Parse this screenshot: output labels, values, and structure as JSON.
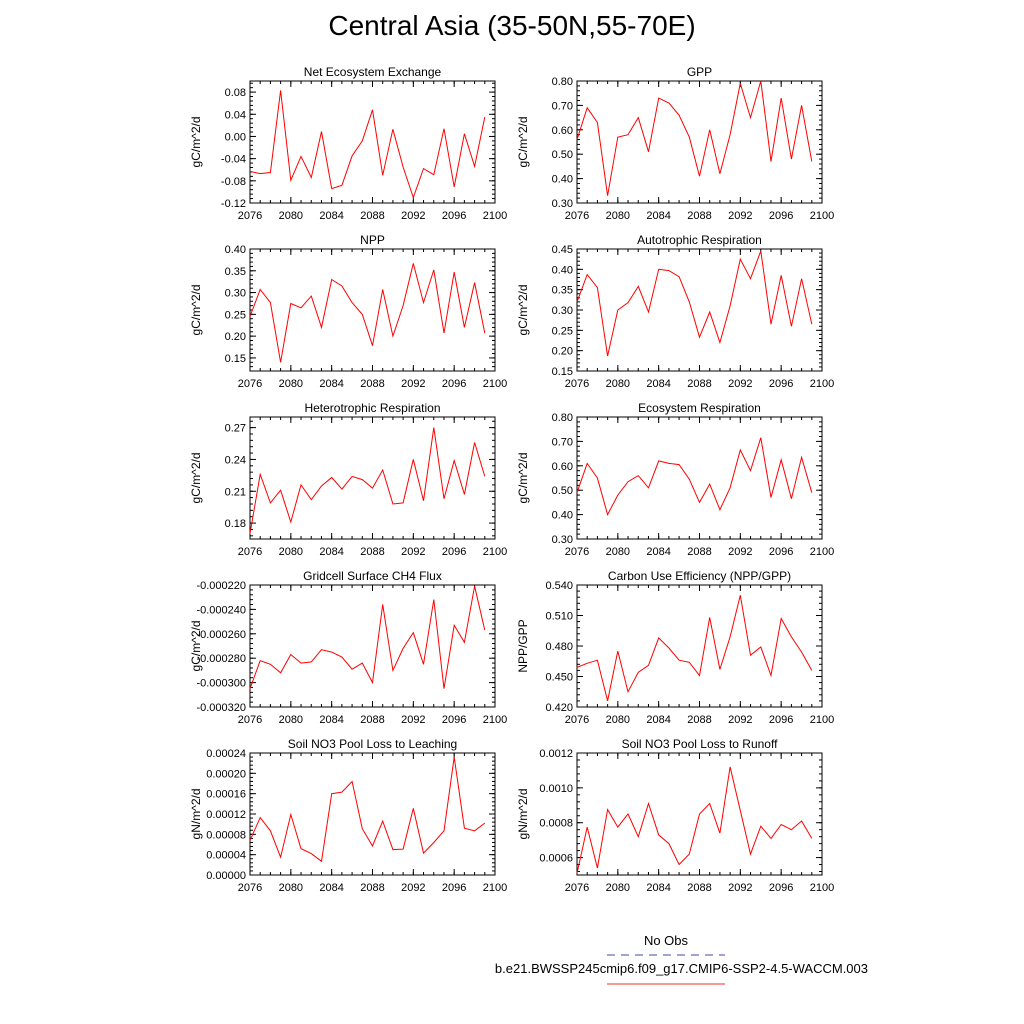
{
  "title": "Central Asia (35-50N,55-70E)",
  "legend": {
    "obs_label": "No Obs",
    "obs_color": "#4444aa",
    "model_label": "b.e21.BWSSP245cmip6.f09_g17.CMIP6-SSP2-4.5-WACCM.003",
    "model_color": "#ee3333"
  },
  "colors": {
    "line": "#ff0000",
    "axis": "#000000"
  },
  "chart_data": [
    {
      "type": "line",
      "title": "Net Ecosystem Exchange",
      "ylabel": "gC/m^2/d",
      "xlim": [
        2076,
        2100
      ],
      "xticks": [
        2076,
        2080,
        2084,
        2088,
        2092,
        2096,
        2100
      ],
      "ylim": [
        -0.12,
        0.1
      ],
      "yticks": [
        -0.12,
        -0.08,
        -0.04,
        0.0,
        0.04,
        0.08
      ],
      "ytick_labels": [
        "-0.12",
        "-0.08",
        "-0.04",
        "0.00",
        "0.04",
        "0.08"
      ],
      "x": [
        2076,
        2077,
        2078,
        2079,
        2080,
        2081,
        2082,
        2083,
        2084,
        2085,
        2086,
        2087,
        2088,
        2089,
        2090,
        2091,
        2092,
        2093,
        2094,
        2095,
        2096,
        2097,
        2098,
        2099
      ],
      "y": [
        -0.063,
        -0.067,
        -0.065,
        0.083,
        -0.079,
        -0.036,
        -0.074,
        0.009,
        -0.094,
        -0.088,
        -0.035,
        -0.008,
        0.048,
        -0.07,
        0.013,
        -0.055,
        -0.11,
        -0.058,
        -0.069,
        0.014,
        -0.091,
        0.005,
        -0.054,
        0.035
      ]
    },
    {
      "type": "line",
      "title": "GPP",
      "ylabel": "gC/m^2/d",
      "xlim": [
        2076,
        2100
      ],
      "xticks": [
        2076,
        2080,
        2084,
        2088,
        2092,
        2096,
        2100
      ],
      "ylim": [
        0.3,
        0.8
      ],
      "yticks": [
        0.3,
        0.4,
        0.5,
        0.6,
        0.7,
        0.8
      ],
      "ytick_labels": [
        "0.30",
        "0.40",
        "0.50",
        "0.60",
        "0.70",
        "0.80"
      ],
      "x": [
        2076,
        2077,
        2078,
        2079,
        2080,
        2081,
        2082,
        2083,
        2084,
        2085,
        2086,
        2087,
        2088,
        2089,
        2090,
        2091,
        2092,
        2093,
        2094,
        2095,
        2096,
        2097,
        2098,
        2099
      ],
      "y": [
        0.56,
        0.69,
        0.63,
        0.33,
        0.57,
        0.58,
        0.65,
        0.51,
        0.73,
        0.71,
        0.66,
        0.57,
        0.41,
        0.6,
        0.42,
        0.58,
        0.79,
        0.65,
        0.8,
        0.47,
        0.73,
        0.48,
        0.7,
        0.47
      ]
    },
    {
      "type": "line",
      "title": "NPP",
      "ylabel": "gC/m^2/d",
      "xlim": [
        2076,
        2100
      ],
      "xticks": [
        2076,
        2080,
        2084,
        2088,
        2092,
        2096,
        2100
      ],
      "ylim": [
        0.12,
        0.4
      ],
      "yticks": [
        0.15,
        0.2,
        0.25,
        0.3,
        0.35,
        0.4
      ],
      "ytick_labels": [
        "0.15",
        "0.20",
        "0.25",
        "0.30",
        "0.35",
        "0.40"
      ],
      "x": [
        2076,
        2077,
        2078,
        2079,
        2080,
        2081,
        2082,
        2083,
        2084,
        2085,
        2086,
        2087,
        2088,
        2089,
        2090,
        2091,
        2092,
        2093,
        2094,
        2095,
        2096,
        2097,
        2098,
        2099
      ],
      "y": [
        0.245,
        0.307,
        0.277,
        0.14,
        0.275,
        0.265,
        0.292,
        0.22,
        0.33,
        0.315,
        0.277,
        0.25,
        0.178,
        0.307,
        0.2,
        0.27,
        0.367,
        0.277,
        0.352,
        0.207,
        0.347,
        0.22,
        0.323,
        0.207
      ]
    },
    {
      "type": "line",
      "title": "Autotrophic Respiration",
      "ylabel": "gC/m^2/d",
      "xlim": [
        2076,
        2100
      ],
      "xticks": [
        2076,
        2080,
        2084,
        2088,
        2092,
        2096,
        2100
      ],
      "ylim": [
        0.15,
        0.45
      ],
      "yticks": [
        0.15,
        0.2,
        0.25,
        0.3,
        0.35,
        0.4,
        0.45
      ],
      "ytick_labels": [
        "0.15",
        "0.20",
        "0.25",
        "0.30",
        "0.35",
        "0.40",
        "0.45"
      ],
      "x": [
        2076,
        2077,
        2078,
        2079,
        2080,
        2081,
        2082,
        2083,
        2084,
        2085,
        2086,
        2087,
        2088,
        2089,
        2090,
        2091,
        2092,
        2093,
        2094,
        2095,
        2096,
        2097,
        2098,
        2099
      ],
      "y": [
        0.32,
        0.387,
        0.355,
        0.187,
        0.3,
        0.318,
        0.358,
        0.295,
        0.4,
        0.397,
        0.382,
        0.32,
        0.233,
        0.295,
        0.22,
        0.31,
        0.425,
        0.377,
        0.445,
        0.265,
        0.385,
        0.26,
        0.377,
        0.265
      ]
    },
    {
      "type": "line",
      "title": "Heterotrophic Respiration",
      "ylabel": "gC/m^2/d",
      "xlim": [
        2076,
        2100
      ],
      "xticks": [
        2076,
        2080,
        2084,
        2088,
        2092,
        2096,
        2100
      ],
      "ylim": [
        0.165,
        0.28
      ],
      "yticks": [
        0.18,
        0.21,
        0.24,
        0.27
      ],
      "ytick_labels": [
        "0.18",
        "0.21",
        "0.24",
        "0.27"
      ],
      "x": [
        2076,
        2077,
        2078,
        2079,
        2080,
        2081,
        2082,
        2083,
        2084,
        2085,
        2086,
        2087,
        2088,
        2089,
        2090,
        2091,
        2092,
        2093,
        2094,
        2095,
        2096,
        2097,
        2098,
        2099
      ],
      "y": [
        0.17,
        0.226,
        0.199,
        0.211,
        0.181,
        0.216,
        0.202,
        0.215,
        0.223,
        0.212,
        0.224,
        0.221,
        0.213,
        0.23,
        0.198,
        0.199,
        0.24,
        0.201,
        0.27,
        0.203,
        0.239,
        0.207,
        0.256,
        0.224
      ]
    },
    {
      "type": "line",
      "title": "Ecosystem Respiration",
      "ylabel": "gC/m^2/d",
      "xlim": [
        2076,
        2100
      ],
      "xticks": [
        2076,
        2080,
        2084,
        2088,
        2092,
        2096,
        2100
      ],
      "ylim": [
        0.3,
        0.8
      ],
      "yticks": [
        0.3,
        0.4,
        0.5,
        0.6,
        0.7,
        0.8
      ],
      "ytick_labels": [
        "0.30",
        "0.40",
        "0.50",
        "0.60",
        "0.70",
        "0.80"
      ],
      "x": [
        2076,
        2077,
        2078,
        2079,
        2080,
        2081,
        2082,
        2083,
        2084,
        2085,
        2086,
        2087,
        2088,
        2089,
        2090,
        2091,
        2092,
        2093,
        2094,
        2095,
        2096,
        2097,
        2098,
        2099
      ],
      "y": [
        0.49,
        0.61,
        0.55,
        0.4,
        0.48,
        0.535,
        0.56,
        0.51,
        0.62,
        0.61,
        0.605,
        0.545,
        0.45,
        0.525,
        0.42,
        0.51,
        0.665,
        0.58,
        0.715,
        0.47,
        0.625,
        0.465,
        0.635,
        0.49
      ]
    },
    {
      "type": "line",
      "title": "Gridcell Surface CH4 Flux",
      "ylabel": "gC/m^2/d",
      "xlim": [
        2076,
        2100
      ],
      "xticks": [
        2076,
        2080,
        2084,
        2088,
        2092,
        2096,
        2100
      ],
      "ylim": [
        -0.00032,
        -0.00022
      ],
      "yticks": [
        -0.00032,
        -0.0003,
        -0.00028,
        -0.00026,
        -0.00024,
        -0.00022
      ],
      "ytick_labels": [
        "-0.000320",
        "-0.000300",
        "-0.000280",
        "-0.000260",
        "-0.000240",
        "-0.000220"
      ],
      "x": [
        2076,
        2077,
        2078,
        2079,
        2080,
        2081,
        2082,
        2083,
        2084,
        2085,
        2086,
        2087,
        2088,
        2089,
        2090,
        2091,
        2092,
        2093,
        2094,
        2095,
        2096,
        2097,
        2098,
        2099
      ],
      "y": [
        -0.000305,
        -0.000282,
        -0.000285,
        -0.000292,
        -0.000277,
        -0.000284,
        -0.000283,
        -0.000273,
        -0.000275,
        -0.000279,
        -0.000289,
        -0.000284,
        -0.0003,
        -0.000236,
        -0.00029,
        -0.000272,
        -0.000259,
        -0.000285,
        -0.000232,
        -0.000305,
        -0.000253,
        -0.000267,
        -0.000221,
        -0.000257
      ]
    },
    {
      "type": "line",
      "title": "Carbon Use Efficiency (NPP/GPP)",
      "ylabel": "NPP/GPP",
      "xlim": [
        2076,
        2100
      ],
      "xticks": [
        2076,
        2080,
        2084,
        2088,
        2092,
        2096,
        2100
      ],
      "ylim": [
        0.42,
        0.54
      ],
      "yticks": [
        0.42,
        0.45,
        0.48,
        0.51,
        0.54
      ],
      "ytick_labels": [
        "0.420",
        "0.450",
        "0.480",
        "0.510",
        "0.540"
      ],
      "x": [
        2076,
        2077,
        2078,
        2079,
        2080,
        2081,
        2082,
        2083,
        2084,
        2085,
        2086,
        2087,
        2088,
        2089,
        2090,
        2091,
        2092,
        2093,
        2094,
        2095,
        2096,
        2097,
        2098,
        2099
      ],
      "y": [
        0.459,
        0.463,
        0.466,
        0.426,
        0.475,
        0.435,
        0.454,
        0.461,
        0.488,
        0.478,
        0.466,
        0.464,
        0.451,
        0.508,
        0.457,
        0.489,
        0.53,
        0.471,
        0.479,
        0.451,
        0.507,
        0.489,
        0.474,
        0.456
      ]
    },
    {
      "type": "line",
      "title": "Soil NO3 Pool Loss to Leaching",
      "ylabel": "gN/m^2/d",
      "xlim": [
        2076,
        2100
      ],
      "xticks": [
        2076,
        2080,
        2084,
        2088,
        2092,
        2096,
        2100
      ],
      "ylim": [
        0.0,
        0.00024
      ],
      "yticks": [
        0.0,
        4e-05,
        8e-05,
        0.00012,
        0.00016,
        0.0002,
        0.00024
      ],
      "ytick_labels": [
        "0.00000",
        "0.00004",
        "0.00008",
        "0.00012",
        "0.00016",
        "0.00020",
        "0.00024"
      ],
      "x": [
        2076,
        2077,
        2078,
        2079,
        2080,
        2081,
        2082,
        2083,
        2084,
        2085,
        2086,
        2087,
        2088,
        2089,
        2090,
        2091,
        2092,
        2093,
        2094,
        2095,
        2096,
        2097,
        2098,
        2099
      ],
      "y": [
        6.8e-05,
        0.000113,
        8.7e-05,
        3.5e-05,
        0.000119,
        5.2e-05,
        4.2e-05,
        2.7e-05,
        0.00016,
        0.000163,
        0.000184,
        9.1e-05,
        5.7e-05,
        0.000106,
        5e-05,
        5.1e-05,
        0.000131,
        4.3e-05,
        6.4e-05,
        8.7e-05,
        0.000232,
        9.2e-05,
        8.7e-05,
        0.000102
      ]
    },
    {
      "type": "line",
      "title": "Soil NO3 Pool Loss to Runoff",
      "ylabel": "gN/m^2/d",
      "xlim": [
        2076,
        2100
      ],
      "xticks": [
        2076,
        2080,
        2084,
        2088,
        2092,
        2096,
        2100
      ],
      "ylim": [
        0.0005,
        0.0012
      ],
      "yticks": [
        0.0006,
        0.0008,
        0.001,
        0.0012
      ],
      "ytick_labels": [
        "0.0006",
        "0.0008",
        "0.0010",
        "0.0012"
      ],
      "x": [
        2076,
        2077,
        2078,
        2079,
        2080,
        2081,
        2082,
        2083,
        2084,
        2085,
        2086,
        2087,
        2088,
        2089,
        2090,
        2091,
        2092,
        2093,
        2094,
        2095,
        2096,
        2097,
        2098,
        2099
      ],
      "y": [
        0.00051,
        0.000775,
        0.00054,
        0.000875,
        0.000775,
        0.00085,
        0.00072,
        0.00091,
        0.00073,
        0.00068,
        0.00056,
        0.00062,
        0.00085,
        0.00091,
        0.00074,
        0.00112,
        0.00087,
        0.00062,
        0.00078,
        0.00071,
        0.00079,
        0.00076,
        0.00081,
        0.00071
      ]
    }
  ]
}
